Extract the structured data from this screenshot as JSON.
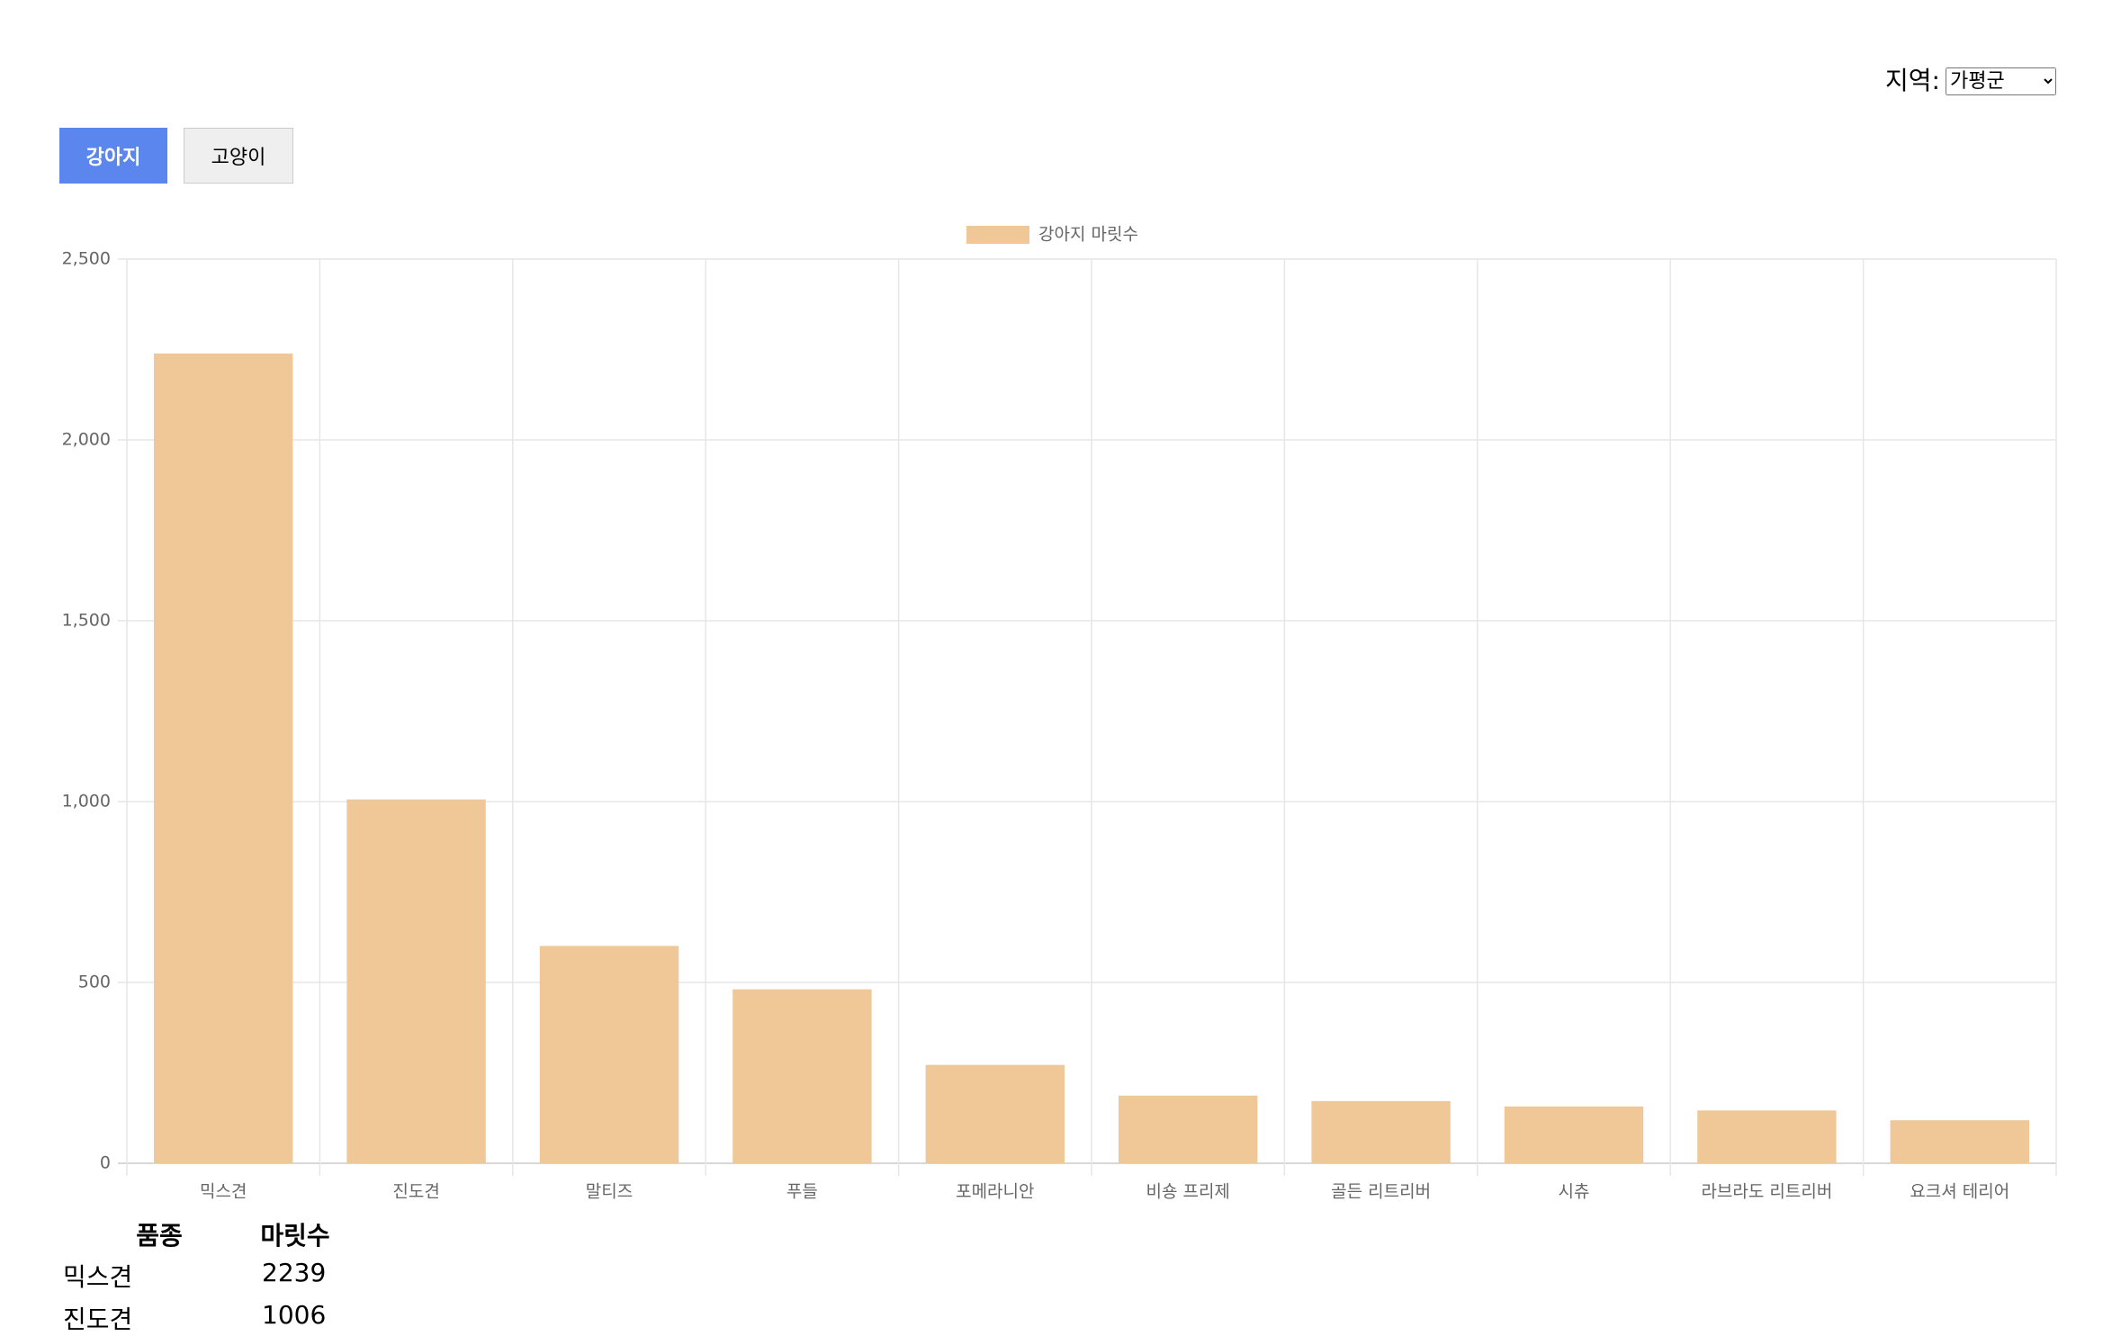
{
  "controls": {
    "region_label": "지역:",
    "region_value": "가평군",
    "tabs": [
      "강아지",
      "고양이"
    ]
  },
  "chart_data": {
    "type": "bar",
    "categories": [
      "믹스견",
      "진도견",
      "말티즈",
      "푸들",
      "포메라니안",
      "비숑 프리제",
      "골든 리트리버",
      "시츄",
      "라브라도 리트리버",
      "요크셔 테리어"
    ],
    "series": [
      {
        "name": "강아지 마릿수",
        "color": "#f0c797",
        "values": [
          2239,
          1006,
          601,
          481,
          272,
          187,
          172,
          157,
          146,
          119
        ]
      }
    ],
    "ylim": [
      0,
      2500
    ],
    "yticks": [
      0,
      500,
      {
        "value": 1000,
        "label": "1,000"
      },
      {
        "value": 1500,
        "label": "1,500"
      },
      {
        "value": 2000,
        "label": "2,000"
      },
      {
        "value": 2500,
        "label": "2,500"
      }
    ],
    "grid": true,
    "legend": "top"
  },
  "table": {
    "headers": [
      "품종",
      "마릿수"
    ],
    "rows": [
      [
        "믹스견",
        "2239"
      ],
      [
        "진도견",
        "1006"
      ]
    ]
  }
}
